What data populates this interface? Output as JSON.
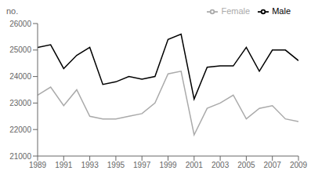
{
  "chart_data": {
    "type": "line",
    "ylabel": "no.",
    "x": [
      1989,
      1990,
      1991,
      1992,
      1993,
      1994,
      1995,
      1996,
      1997,
      1998,
      1999,
      2000,
      2001,
      2002,
      2003,
      2004,
      2005,
      2006,
      2007,
      2008,
      2009
    ],
    "series": [
      {
        "name": "Male",
        "color": "#000000",
        "values": [
          25100,
          25200,
          24300,
          24800,
          25100,
          23700,
          23800,
          24000,
          23900,
          24000,
          25400,
          25600,
          23150,
          24350,
          24400,
          24400,
          25100,
          24200,
          25000,
          25000,
          24600
        ]
      },
      {
        "name": "Female",
        "color": "#aaaaaa",
        "values": [
          23300,
          23600,
          22900,
          23500,
          22500,
          22400,
          22400,
          22500,
          22600,
          23000,
          24100,
          24200,
          21800,
          22800,
          23000,
          23300,
          22400,
          22800,
          22900,
          22400,
          22300
        ]
      }
    ],
    "xlim": [
      1989,
      2009
    ],
    "xticks": [
      1989,
      1991,
      1993,
      1995,
      1997,
      1999,
      2001,
      2003,
      2005,
      2007,
      2009
    ],
    "ylim": [
      21000,
      26000
    ],
    "yticks": [
      21000,
      22000,
      23000,
      24000,
      25000,
      26000
    ],
    "grid": false,
    "legend": "upper right"
  }
}
